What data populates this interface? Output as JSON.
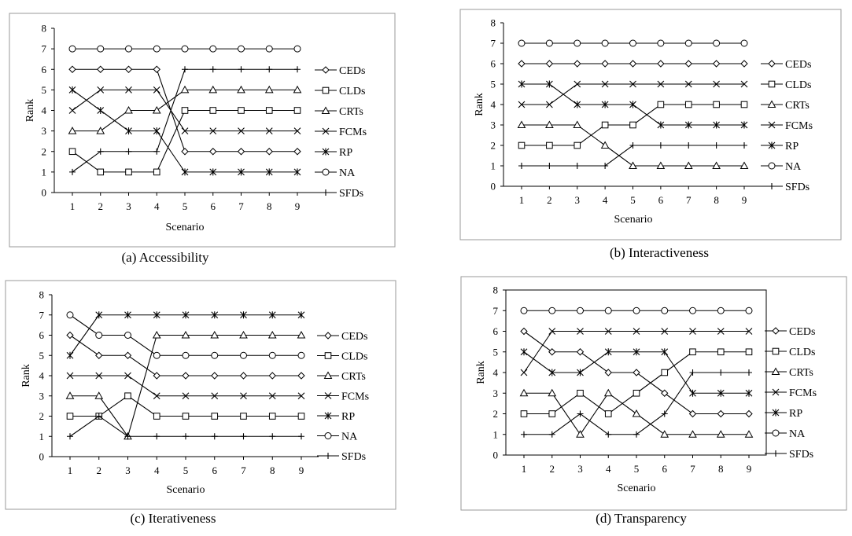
{
  "chart_data": [
    {
      "type": "line",
      "caption": "(a) Accessibility",
      "xlabel": "Scenario",
      "ylabel": "Rank",
      "x": [
        1,
        2,
        3,
        4,
        5,
        6,
        7,
        8,
        9
      ],
      "ylim": [
        0,
        8
      ],
      "legend": "right",
      "series": [
        {
          "name": "CEDs",
          "marker": "diamond",
          "values": [
            6,
            6,
            6,
            6,
            2,
            2,
            2,
            2,
            2
          ]
        },
        {
          "name": "CLDs",
          "marker": "square",
          "values": [
            2,
            1,
            1,
            1,
            4,
            4,
            4,
            4,
            4
          ]
        },
        {
          "name": "CRTs",
          "marker": "triangle",
          "values": [
            3,
            3,
            4,
            4,
            5,
            5,
            5,
            5,
            5
          ]
        },
        {
          "name": "FCMs",
          "marker": "x",
          "values": [
            4,
            5,
            5,
            5,
            3,
            3,
            3,
            3,
            3
          ]
        },
        {
          "name": "RP",
          "marker": "asterisk",
          "values": [
            5,
            4,
            3,
            3,
            1,
            1,
            1,
            1,
            1
          ]
        },
        {
          "name": "NA",
          "marker": "circle",
          "values": [
            7,
            7,
            7,
            7,
            7,
            7,
            7,
            7,
            7
          ]
        },
        {
          "name": "SFDs",
          "marker": "plus",
          "values": [
            1,
            2,
            2,
            2,
            6,
            6,
            6,
            6,
            6
          ]
        }
      ]
    },
    {
      "type": "line",
      "caption": "(b) Interactiveness",
      "xlabel": "Scenario",
      "ylabel": "Rank",
      "x": [
        1,
        2,
        3,
        4,
        5,
        6,
        7,
        8,
        9
      ],
      "ylim": [
        0,
        8
      ],
      "legend": "right",
      "series": [
        {
          "name": "CEDs",
          "marker": "diamond",
          "values": [
            6,
            6,
            6,
            6,
            6,
            6,
            6,
            6,
            6
          ]
        },
        {
          "name": "CLDs",
          "marker": "square",
          "values": [
            2,
            2,
            2,
            3,
            3,
            4,
            4,
            4,
            4
          ]
        },
        {
          "name": "CRTs",
          "marker": "triangle",
          "values": [
            3,
            3,
            3,
            2,
            1,
            1,
            1,
            1,
            1
          ]
        },
        {
          "name": "FCMs",
          "marker": "x",
          "values": [
            4,
            4,
            5,
            5,
            5,
            5,
            5,
            5,
            5
          ]
        },
        {
          "name": "RP",
          "marker": "asterisk",
          "values": [
            5,
            5,
            4,
            4,
            4,
            3,
            3,
            3,
            3
          ]
        },
        {
          "name": "NA",
          "marker": "circle",
          "values": [
            7,
            7,
            7,
            7,
            7,
            7,
            7,
            7,
            7
          ]
        },
        {
          "name": "SFDs",
          "marker": "plus",
          "values": [
            1,
            1,
            1,
            1,
            2,
            2,
            2,
            2,
            2
          ]
        }
      ]
    },
    {
      "type": "line",
      "caption": "(c) Iterativeness",
      "xlabel": "Scenario",
      "ylabel": "Rank",
      "x": [
        1,
        2,
        3,
        4,
        5,
        6,
        7,
        8,
        9
      ],
      "ylim": [
        0,
        8
      ],
      "legend": "right",
      "series": [
        {
          "name": "CEDs",
          "marker": "diamond",
          "values": [
            6,
            5,
            5,
            4,
            4,
            4,
            4,
            4,
            4
          ]
        },
        {
          "name": "CLDs",
          "marker": "square",
          "values": [
            2,
            2,
            3,
            2,
            2,
            2,
            2,
            2,
            2
          ]
        },
        {
          "name": "CRTs",
          "marker": "triangle",
          "values": [
            3,
            3,
            1,
            6,
            6,
            6,
            6,
            6,
            6
          ]
        },
        {
          "name": "FCMs",
          "marker": "x",
          "values": [
            4,
            4,
            4,
            3,
            3,
            3,
            3,
            3,
            3
          ]
        },
        {
          "name": "RP",
          "marker": "asterisk",
          "values": [
            5,
            7,
            7,
            7,
            7,
            7,
            7,
            7,
            7
          ]
        },
        {
          "name": "NA",
          "marker": "circle",
          "values": [
            7,
            6,
            6,
            5,
            5,
            5,
            5,
            5,
            5
          ]
        },
        {
          "name": "SFDs",
          "marker": "plus",
          "values": [
            1,
            2,
            1,
            1,
            1,
            1,
            1,
            1,
            1
          ]
        }
      ]
    },
    {
      "type": "line",
      "caption": "(d) Transparency",
      "xlabel": "Scenario",
      "ylabel": "Rank",
      "x": [
        1,
        2,
        3,
        4,
        5,
        6,
        7,
        8,
        9
      ],
      "ylim": [
        0,
        8
      ],
      "legend": "right",
      "series": [
        {
          "name": "CEDs",
          "marker": "diamond",
          "values": [
            6,
            5,
            5,
            4,
            4,
            3,
            2,
            2,
            2
          ]
        },
        {
          "name": "CLDs",
          "marker": "square",
          "values": [
            2,
            2,
            3,
            2,
            3,
            4,
            5,
            5,
            5
          ]
        },
        {
          "name": "CRTs",
          "marker": "triangle",
          "values": [
            3,
            3,
            1,
            3,
            2,
            1,
            1,
            1,
            1
          ]
        },
        {
          "name": "FCMs",
          "marker": "x",
          "values": [
            4,
            6,
            6,
            6,
            6,
            6,
            6,
            6,
            6
          ]
        },
        {
          "name": "RP",
          "marker": "asterisk",
          "values": [
            5,
            4,
            4,
            5,
            5,
            5,
            3,
            3,
            3
          ]
        },
        {
          "name": "NA",
          "marker": "circle",
          "values": [
            7,
            7,
            7,
            7,
            7,
            7,
            7,
            7,
            7
          ]
        },
        {
          "name": "SFDs",
          "marker": "plus",
          "values": [
            1,
            1,
            2,
            1,
            1,
            2,
            4,
            4,
            4
          ]
        }
      ]
    }
  ]
}
